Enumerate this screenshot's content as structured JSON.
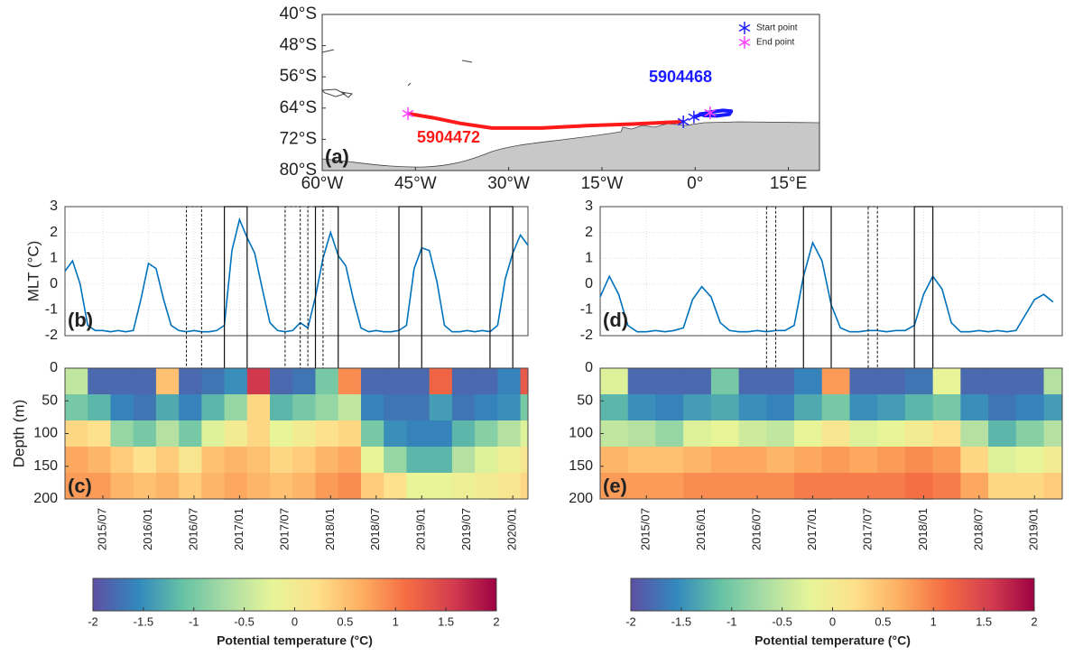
{
  "chart_data": [
    {
      "type": "map",
      "panel_label": "(a)",
      "xlim": [
        -60,
        20
      ],
      "ylim": [
        -80,
        -40
      ],
      "xticks": [
        {
          "value": -60,
          "label": "60°W"
        },
        {
          "value": -45,
          "label": "45°W"
        },
        {
          "value": -30,
          "label": "30°W"
        },
        {
          "value": -15,
          "label": "15°W"
        },
        {
          "value": 0,
          "label": "0°"
        },
        {
          "value": 15,
          "label": "15°E"
        }
      ],
      "yticks": [
        {
          "value": -40,
          "label": "40°S"
        },
        {
          "value": -48,
          "label": "48°S"
        },
        {
          "value": -56,
          "label": "56°S"
        },
        {
          "value": -64,
          "label": "64°S"
        },
        {
          "value": -72,
          "label": "72°S"
        },
        {
          "value": -80,
          "label": "80°S"
        }
      ],
      "legend": [
        {
          "name": "Start point",
          "color": "#2020ff"
        },
        {
          "name": "End point",
          "color": "#ff40ff"
        }
      ],
      "series": [
        {
          "name": "5904472",
          "color": "#ff1a1a",
          "lon": [
            -1.9,
            -10.2,
            -17.5,
            -24.7,
            -32.7,
            -37.8,
            -42.1,
            -46.2
          ],
          "lat": [
            -67.5,
            -68.1,
            -68.5,
            -69.1,
            -69.1,
            -67.9,
            -66.5,
            -65.4
          ]
        },
        {
          "name": "5904468",
          "color": "#1a1aff",
          "lon": [
            -0.2,
            1.0,
            2.5,
            4.5,
            5.8,
            5.5,
            3.5,
            1.5,
            0.8,
            2.4
          ],
          "lat": [
            -66.3,
            -65.6,
            -65.0,
            -64.6,
            -64.8,
            -65.6,
            -66.0,
            -65.9,
            -65.5,
            -65.2
          ]
        }
      ]
    },
    {
      "type": "line",
      "panel_label": "(b)",
      "y_label": "MLT (°C)",
      "color": "#0072bd",
      "grid": true,
      "xlim": [
        "2015/02",
        "2020/03"
      ],
      "ylim": [
        -2,
        3
      ],
      "yticks": [
        -2,
        -1,
        0,
        1,
        2,
        3
      ],
      "x": [
        "2015/02",
        "2015/03",
        "2015/04",
        "2015/05",
        "2015/06",
        "2015/07",
        "2015/08",
        "2015/09",
        "2015/10",
        "2015/11",
        "2015/12",
        "2016/01",
        "2016/02",
        "2016/03",
        "2016/04",
        "2016/05",
        "2016/06",
        "2016/07",
        "2016/08",
        "2016/09",
        "2016/10",
        "2016/11",
        "2016/12",
        "2017/01",
        "2017/02",
        "2017/03",
        "2017/04",
        "2017/05",
        "2017/06",
        "2017/07",
        "2017/08",
        "2017/09",
        "2017/10",
        "2017/11",
        "2017/12",
        "2018/01",
        "2018/02",
        "2018/03",
        "2018/04",
        "2018/05",
        "2018/06",
        "2018/07",
        "2018/08",
        "2018/09",
        "2018/10",
        "2018/11",
        "2018/12",
        "2019/01",
        "2019/02",
        "2019/03",
        "2019/04",
        "2019/05",
        "2019/06",
        "2019/07",
        "2019/08",
        "2019/09",
        "2019/10",
        "2019/11",
        "2019/12",
        "2020/01",
        "2020/02",
        "2020/03"
      ],
      "values": [
        0.5,
        0.9,
        0.0,
        -1.6,
        -1.8,
        -1.8,
        -1.85,
        -1.8,
        -1.85,
        -1.8,
        -0.6,
        0.8,
        0.6,
        -0.6,
        -1.6,
        -1.8,
        -1.85,
        -1.8,
        -1.85,
        -1.85,
        -1.8,
        -1.6,
        1.3,
        2.5,
        1.8,
        1.2,
        -0.2,
        -1.5,
        -1.8,
        -1.85,
        -1.8,
        -1.5,
        -1.7,
        -0.5,
        1.0,
        2.0,
        1.1,
        0.7,
        -0.6,
        -1.7,
        -1.85,
        -1.8,
        -1.85,
        -1.85,
        -1.8,
        -1.6,
        0.6,
        1.4,
        1.3,
        0.1,
        -1.6,
        -1.85,
        -1.85,
        -1.8,
        -1.85,
        -1.8,
        -1.85,
        -1.6,
        0.2,
        1.2,
        1.9,
        1.5
      ],
      "periods": [
        {
          "start": "2016/11",
          "end": "2017/02",
          "style": "solid"
        },
        {
          "start": "2017/11",
          "end": "2018/02",
          "style": "solid"
        },
        {
          "start": "2018/10",
          "end": "2019/01",
          "style": "solid"
        },
        {
          "start": "2019/10",
          "end": "2020/01",
          "style": "solid"
        },
        {
          "start": "2016/06",
          "end": "2016/08",
          "style": "dashed"
        },
        {
          "start": "2017/07",
          "end": "2017/09",
          "style": "dashed"
        },
        {
          "start": "2017/10",
          "end": "2017/12",
          "style": "dashed"
        }
      ]
    },
    {
      "type": "heatmap",
      "panel_label": "(c)",
      "y_label": "Depth (m)",
      "xlim": [
        "2015/02",
        "2020/03"
      ],
      "ylim": [
        200,
        0
      ],
      "yticks": [
        0,
        50,
        100,
        150,
        200
      ],
      "xticks": [
        "2015/07",
        "2016/01",
        "2016/07",
        "2017/01",
        "2017/07",
        "2018/01",
        "2018/07",
        "2019/01",
        "2019/07",
        "2020/01"
      ],
      "clim": [
        -2,
        2
      ],
      "colors": [
        "#5e4fa2",
        "#3288bd",
        "#66c2a5",
        "#abdda4",
        "#e6f598",
        "#fee08b",
        "#fdae61",
        "#f46d43",
        "#d53e4f",
        "#9e0142"
      ],
      "colorbar": {
        "label": "Potential temperature (°C)",
        "ticks": [
          -2,
          -1.5,
          -1,
          -0.5,
          0,
          0.5,
          1,
          1.5,
          2
        ]
      },
      "depth_edges": [
        0,
        40,
        80,
        120,
        160,
        200
      ],
      "x": [
        "2015/02",
        "2015/05",
        "2015/08",
        "2015/11",
        "2016/02",
        "2016/05",
        "2016/08",
        "2016/11",
        "2017/02",
        "2017/05",
        "2017/08",
        "2017/11",
        "2018/02",
        "2018/05",
        "2018/08",
        "2018/11",
        "2019/02",
        "2019/05",
        "2019/08",
        "2019/11",
        "2020/02"
      ],
      "z": [
        [
          -0.5,
          -1.0,
          0.3,
          0.7,
          0.8
        ],
        [
          -1.8,
          -1.2,
          0.2,
          0.6,
          0.8
        ],
        [
          -1.8,
          -1.6,
          -0.8,
          0.4,
          0.6
        ],
        [
          -1.8,
          -1.7,
          -1.0,
          0.2,
          0.5
        ],
        [
          0.5,
          -1.3,
          -0.6,
          0.4,
          0.6
        ],
        [
          -1.8,
          -1.6,
          -1.0,
          0.1,
          0.4
        ],
        [
          -1.7,
          -1.2,
          -0.3,
          0.5,
          0.6
        ],
        [
          -1.5,
          -0.8,
          0.0,
          0.6,
          0.7
        ],
        [
          1.6,
          0.3,
          0.3,
          0.5,
          0.6
        ],
        [
          -1.8,
          -1.2,
          -0.2,
          0.3,
          0.5
        ],
        [
          -1.7,
          -1.0,
          0.0,
          0.4,
          0.6
        ],
        [
          -1.0,
          -0.8,
          0.2,
          0.6,
          0.8
        ],
        [
          0.9,
          -0.5,
          0.3,
          0.7,
          0.9
        ],
        [
          -1.8,
          -1.6,
          -1.0,
          -0.2,
          0.4
        ],
        [
          -1.8,
          -1.7,
          -1.5,
          -0.8,
          0.2
        ],
        [
          -1.8,
          -1.7,
          -1.6,
          -1.2,
          -0.2
        ],
        [
          1.2,
          -1.4,
          -1.6,
          -1.2,
          -0.2
        ],
        [
          -1.8,
          -1.7,
          -1.2,
          -0.6,
          -0.1
        ],
        [
          -1.8,
          -1.6,
          -0.9,
          -0.3,
          0.0
        ],
        [
          -1.6,
          -1.5,
          -0.6,
          -0.1,
          0.1
        ],
        [
          1.3,
          -1.0,
          -0.3,
          0.1,
          0.3
        ]
      ]
    },
    {
      "type": "line",
      "panel_label": "(d)",
      "color": "#0072bd",
      "grid": true,
      "xlim": [
        "2015/02",
        "2019/04"
      ],
      "ylim": [
        -2,
        3
      ],
      "yticks": [
        -2,
        -1,
        0,
        1,
        2,
        3
      ],
      "x": [
        "2015/02",
        "2015/03",
        "2015/04",
        "2015/05",
        "2015/06",
        "2015/07",
        "2015/08",
        "2015/09",
        "2015/10",
        "2015/11",
        "2015/12",
        "2016/01",
        "2016/02",
        "2016/03",
        "2016/04",
        "2016/05",
        "2016/06",
        "2016/07",
        "2016/08",
        "2016/09",
        "2016/10",
        "2016/11",
        "2016/12",
        "2017/01",
        "2017/02",
        "2017/03",
        "2017/04",
        "2017/05",
        "2017/06",
        "2017/07",
        "2017/08",
        "2017/09",
        "2017/10",
        "2017/11",
        "2017/12",
        "2018/01",
        "2018/02",
        "2018/03",
        "2018/04",
        "2018/05",
        "2018/06",
        "2018/07",
        "2018/08",
        "2018/09",
        "2018/10",
        "2018/11",
        "2018/12",
        "2019/01",
        "2019/02",
        "2019/03"
      ],
      "values": [
        -0.5,
        0.3,
        -0.4,
        -1.6,
        -1.85,
        -1.85,
        -1.8,
        -1.85,
        -1.8,
        -1.7,
        -0.6,
        -0.1,
        -0.5,
        -1.5,
        -1.8,
        -1.85,
        -1.85,
        -1.8,
        -1.85,
        -1.8,
        -1.8,
        -1.6,
        0.3,
        1.6,
        0.9,
        -0.8,
        -1.7,
        -1.85,
        -1.85,
        -1.8,
        -1.8,
        -1.85,
        -1.8,
        -1.8,
        -1.6,
        -0.4,
        0.3,
        -0.2,
        -1.5,
        -1.85,
        -1.85,
        -1.8,
        -1.85,
        -1.8,
        -1.85,
        -1.8,
        -1.2,
        -0.6,
        -0.4,
        -0.7
      ],
      "periods": [
        {
          "start": "2016/12",
          "end": "2017/03",
          "style": "solid"
        },
        {
          "start": "2017/12",
          "end": "2018/02",
          "style": "solid"
        },
        {
          "start": "2016/08",
          "end": "2016/09",
          "style": "dashed"
        },
        {
          "start": "2017/07",
          "end": "2017/08",
          "style": "dashed"
        }
      ]
    },
    {
      "type": "heatmap",
      "panel_label": "(e)",
      "xlim": [
        "2015/02",
        "2019/04"
      ],
      "ylim": [
        200,
        0
      ],
      "yticks": [
        0,
        50,
        100,
        150,
        200
      ],
      "xticks": [
        "2015/07",
        "2016/01",
        "2016/07",
        "2017/01",
        "2017/07",
        "2018/01",
        "2018/07",
        "2019/01"
      ],
      "clim": [
        -2,
        2
      ],
      "colors": [
        "#5e4fa2",
        "#3288bd",
        "#66c2a5",
        "#abdda4",
        "#e6f598",
        "#fee08b",
        "#fdae61",
        "#f46d43",
        "#d53e4f",
        "#9e0142"
      ],
      "colorbar": {
        "label": "Potential temperature (°C)",
        "ticks": [
          -2,
          -1.5,
          -1,
          -0.5,
          0,
          0.5,
          1,
          1.5,
          2
        ]
      },
      "depth_edges": [
        0,
        40,
        80,
        120,
        160,
        200
      ],
      "x": [
        "2015/02",
        "2015/05",
        "2015/08",
        "2015/11",
        "2016/02",
        "2016/05",
        "2016/08",
        "2016/11",
        "2017/02",
        "2017/05",
        "2017/08",
        "2017/11",
        "2018/02",
        "2018/05",
        "2018/08",
        "2018/11",
        "2019/02"
      ],
      "z": [
        [
          -0.3,
          -1.2,
          -0.5,
          0.6,
          0.8
        ],
        [
          -1.8,
          -1.5,
          -0.6,
          0.5,
          0.8
        ],
        [
          -1.8,
          -1.6,
          -0.8,
          0.5,
          0.8
        ],
        [
          -1.8,
          -1.4,
          -0.3,
          0.6,
          0.9
        ],
        [
          -1.0,
          -1.3,
          -0.2,
          0.7,
          0.9
        ],
        [
          -1.8,
          -1.5,
          -0.4,
          0.7,
          0.9
        ],
        [
          -1.8,
          -1.6,
          -0.5,
          0.6,
          0.9
        ],
        [
          -1.6,
          -1.3,
          -0.2,
          0.7,
          1.0
        ],
        [
          0.8,
          -1.0,
          0.1,
          0.8,
          1.0
        ],
        [
          -1.8,
          -1.5,
          -0.3,
          0.7,
          1.0
        ],
        [
          -1.8,
          -1.4,
          -0.2,
          0.8,
          1.0
        ],
        [
          -1.7,
          -1.2,
          0.0,
          0.9,
          1.1
        ],
        [
          -0.2,
          -1.0,
          0.2,
          0.8,
          1.0
        ],
        [
          -1.8,
          -1.5,
          -0.6,
          0.3,
          0.7
        ],
        [
          -1.8,
          -1.7,
          -1.2,
          -0.3,
          0.3
        ],
        [
          -1.8,
          -1.6,
          -0.9,
          -0.2,
          0.3
        ],
        [
          -0.6,
          -1.4,
          -0.6,
          0.0,
          0.4
        ]
      ]
    }
  ]
}
